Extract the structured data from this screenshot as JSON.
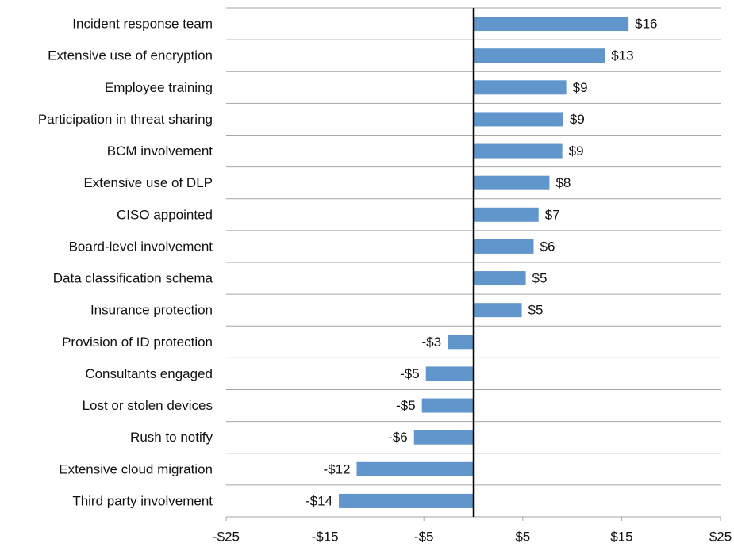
{
  "chart_data": {
    "type": "barh",
    "categories": [
      "Incident response team",
      "Extensive use of encryption",
      "Employee training",
      "Participation in threat sharing",
      "BCM involvement",
      "Extensive use of DLP",
      "CISO appointed",
      "Board-level involvement",
      "Data classification schema",
      "Insurance protection",
      "Provision of ID protection",
      "Consultants engaged",
      "Lost or stolen devices",
      "Rush to notify",
      "Extensive cloud migration",
      "Third party involvement"
    ],
    "values": [
      15.7,
      13.3,
      9.4,
      9.1,
      9.0,
      7.7,
      6.6,
      6.1,
      5.3,
      4.9,
      -2.6,
      -4.8,
      -5.2,
      -6.0,
      -11.8,
      -13.6
    ],
    "value_labels": [
      "$16",
      "$13",
      "$9",
      "$9",
      "$9",
      "$8",
      "$7",
      "$6",
      "$5",
      "$5",
      "-$3",
      "-$5",
      "-$5",
      "-$6",
      "-$12",
      "-$14"
    ],
    "color": "#6196cc",
    "xlim": [
      -25,
      25
    ],
    "xticks": [
      {
        "value": -25,
        "label": "-$25"
      },
      {
        "value": -15,
        "label": "-$15"
      },
      {
        "value": -5,
        "label": "-$5"
      },
      {
        "value": 5,
        "label": "$5"
      },
      {
        "value": 15,
        "label": "$15"
      },
      {
        "value": 25,
        "label": "$25"
      }
    ],
    "grid": true
  }
}
